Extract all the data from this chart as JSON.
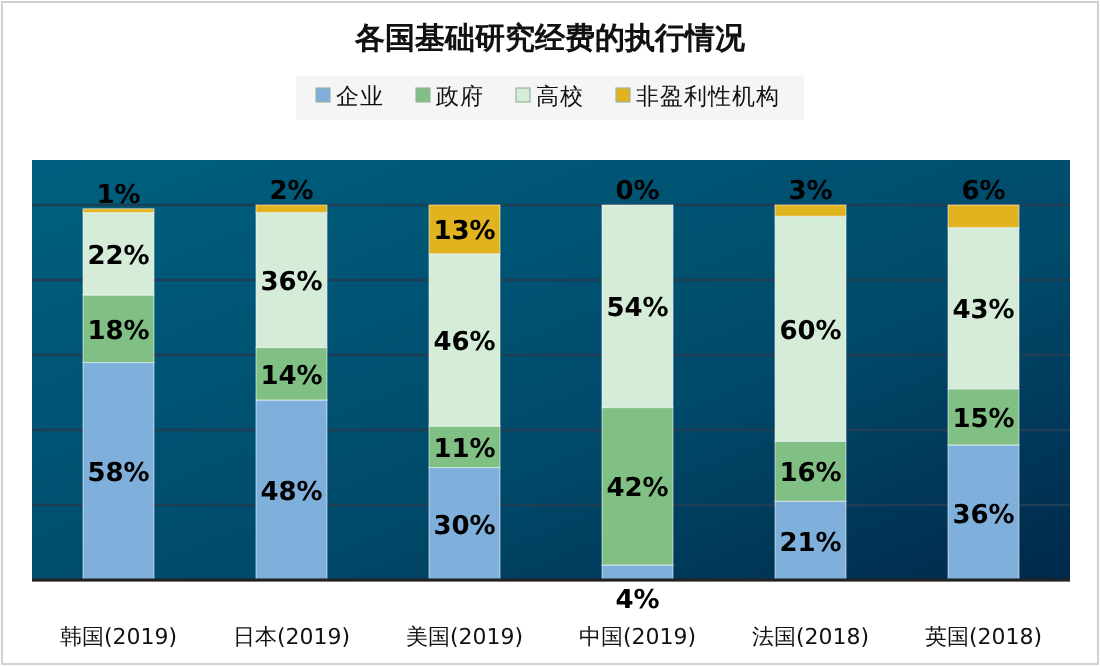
{
  "chart_data": {
    "type": "bar",
    "title": "各国基础研究经费的执行情况",
    "stacked": true,
    "legend": "top",
    "grid": "y",
    "tick_labels": "x",
    "categories": [
      "韩国(2019)",
      "日本(2019)",
      "美国(2019)",
      "中国(2019)",
      "法国(2018)",
      "英国(2018)"
    ],
    "ylim": [
      0,
      112
    ],
    "yticks": [
      {
        "value": 0,
        "label": null
      },
      {
        "value": 20,
        "label": null
      },
      {
        "value": 40,
        "label": null
      },
      {
        "value": 60,
        "label": null
      },
      {
        "value": 80,
        "label": null
      },
      {
        "value": 100,
        "label": null
      }
    ],
    "series": [
      {
        "name": "企业",
        "color": "#7fb0dc",
        "values": [
          58,
          48,
          30,
          4,
          21,
          36
        ],
        "value_labels": [
          "58%",
          "48%",
          "30%",
          "4%",
          "21%",
          "36%"
        ]
      },
      {
        "name": "政府",
        "color": "#80c084",
        "values": [
          18,
          14,
          11,
          42,
          16,
          15
        ],
        "value_labels": [
          "18%",
          "14%",
          "11%",
          "42%",
          "16%",
          "15%"
        ]
      },
      {
        "name": "高校",
        "color": "#d5ecd9",
        "values": [
          22,
          36,
          46,
          54,
          60,
          43
        ],
        "value_labels": [
          "22%",
          "36%",
          "46%",
          "54%",
          "60%",
          "43%"
        ]
      },
      {
        "name": "非盈利性机构",
        "color": "#e1b31e",
        "values": [
          1,
          2,
          13,
          0,
          3,
          6
        ],
        "value_labels": [
          "1%",
          "2%",
          "13%",
          "0%",
          "3%",
          "6%"
        ]
      }
    ]
  }
}
